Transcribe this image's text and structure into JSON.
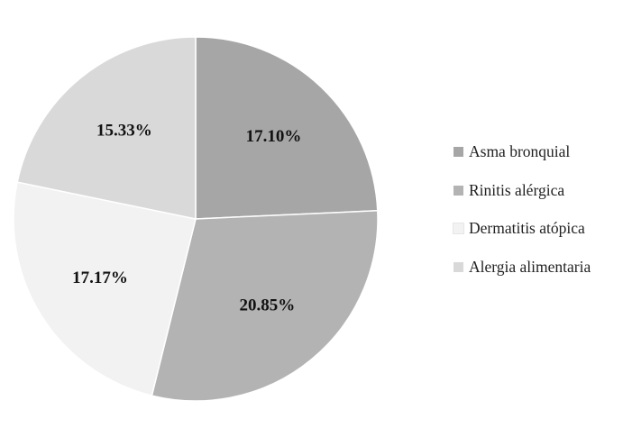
{
  "chart_data": {
    "type": "pie",
    "title": "",
    "slices": [
      {
        "label": "Asma bronquial",
        "value": 17.1,
        "value_label": "17.10%",
        "color": "#a6a6a6"
      },
      {
        "label": "Rinitis alérgica",
        "value": 20.85,
        "value_label": "20.85%",
        "color": "#b3b3b3"
      },
      {
        "label": "Dermatitis atópica",
        "value": 17.17,
        "value_label": "17.17%",
        "color": "#f2f2f2"
      },
      {
        "label": "Alergia alimentaria",
        "value": 15.33,
        "value_label": "15.33%",
        "color": "#d9d9d9"
      }
    ],
    "legend_position": "right",
    "start_angle_deg": 0,
    "direction": "clockwise"
  }
}
